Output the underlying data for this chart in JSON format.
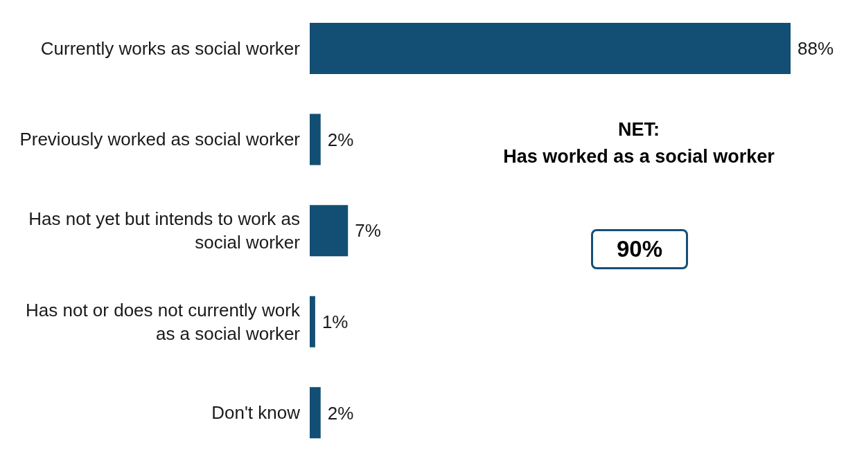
{
  "chart_data": {
    "type": "bar",
    "orientation": "horizontal",
    "categories": [
      "Currently works as social worker",
      "Previously worked as social worker",
      "Has not yet but intends to work as social worker",
      "Has not or does not currently work as a social worker",
      "Don't know"
    ],
    "values": [
      88,
      2,
      7,
      1,
      2
    ],
    "value_labels": [
      "88%",
      "2%",
      "7%",
      "1%",
      "2%"
    ],
    "color": "#134f74",
    "annotations": [
      "NET:\nHas worked as a social worker",
      "90%"
    ],
    "legend": false,
    "grid": false
  }
}
